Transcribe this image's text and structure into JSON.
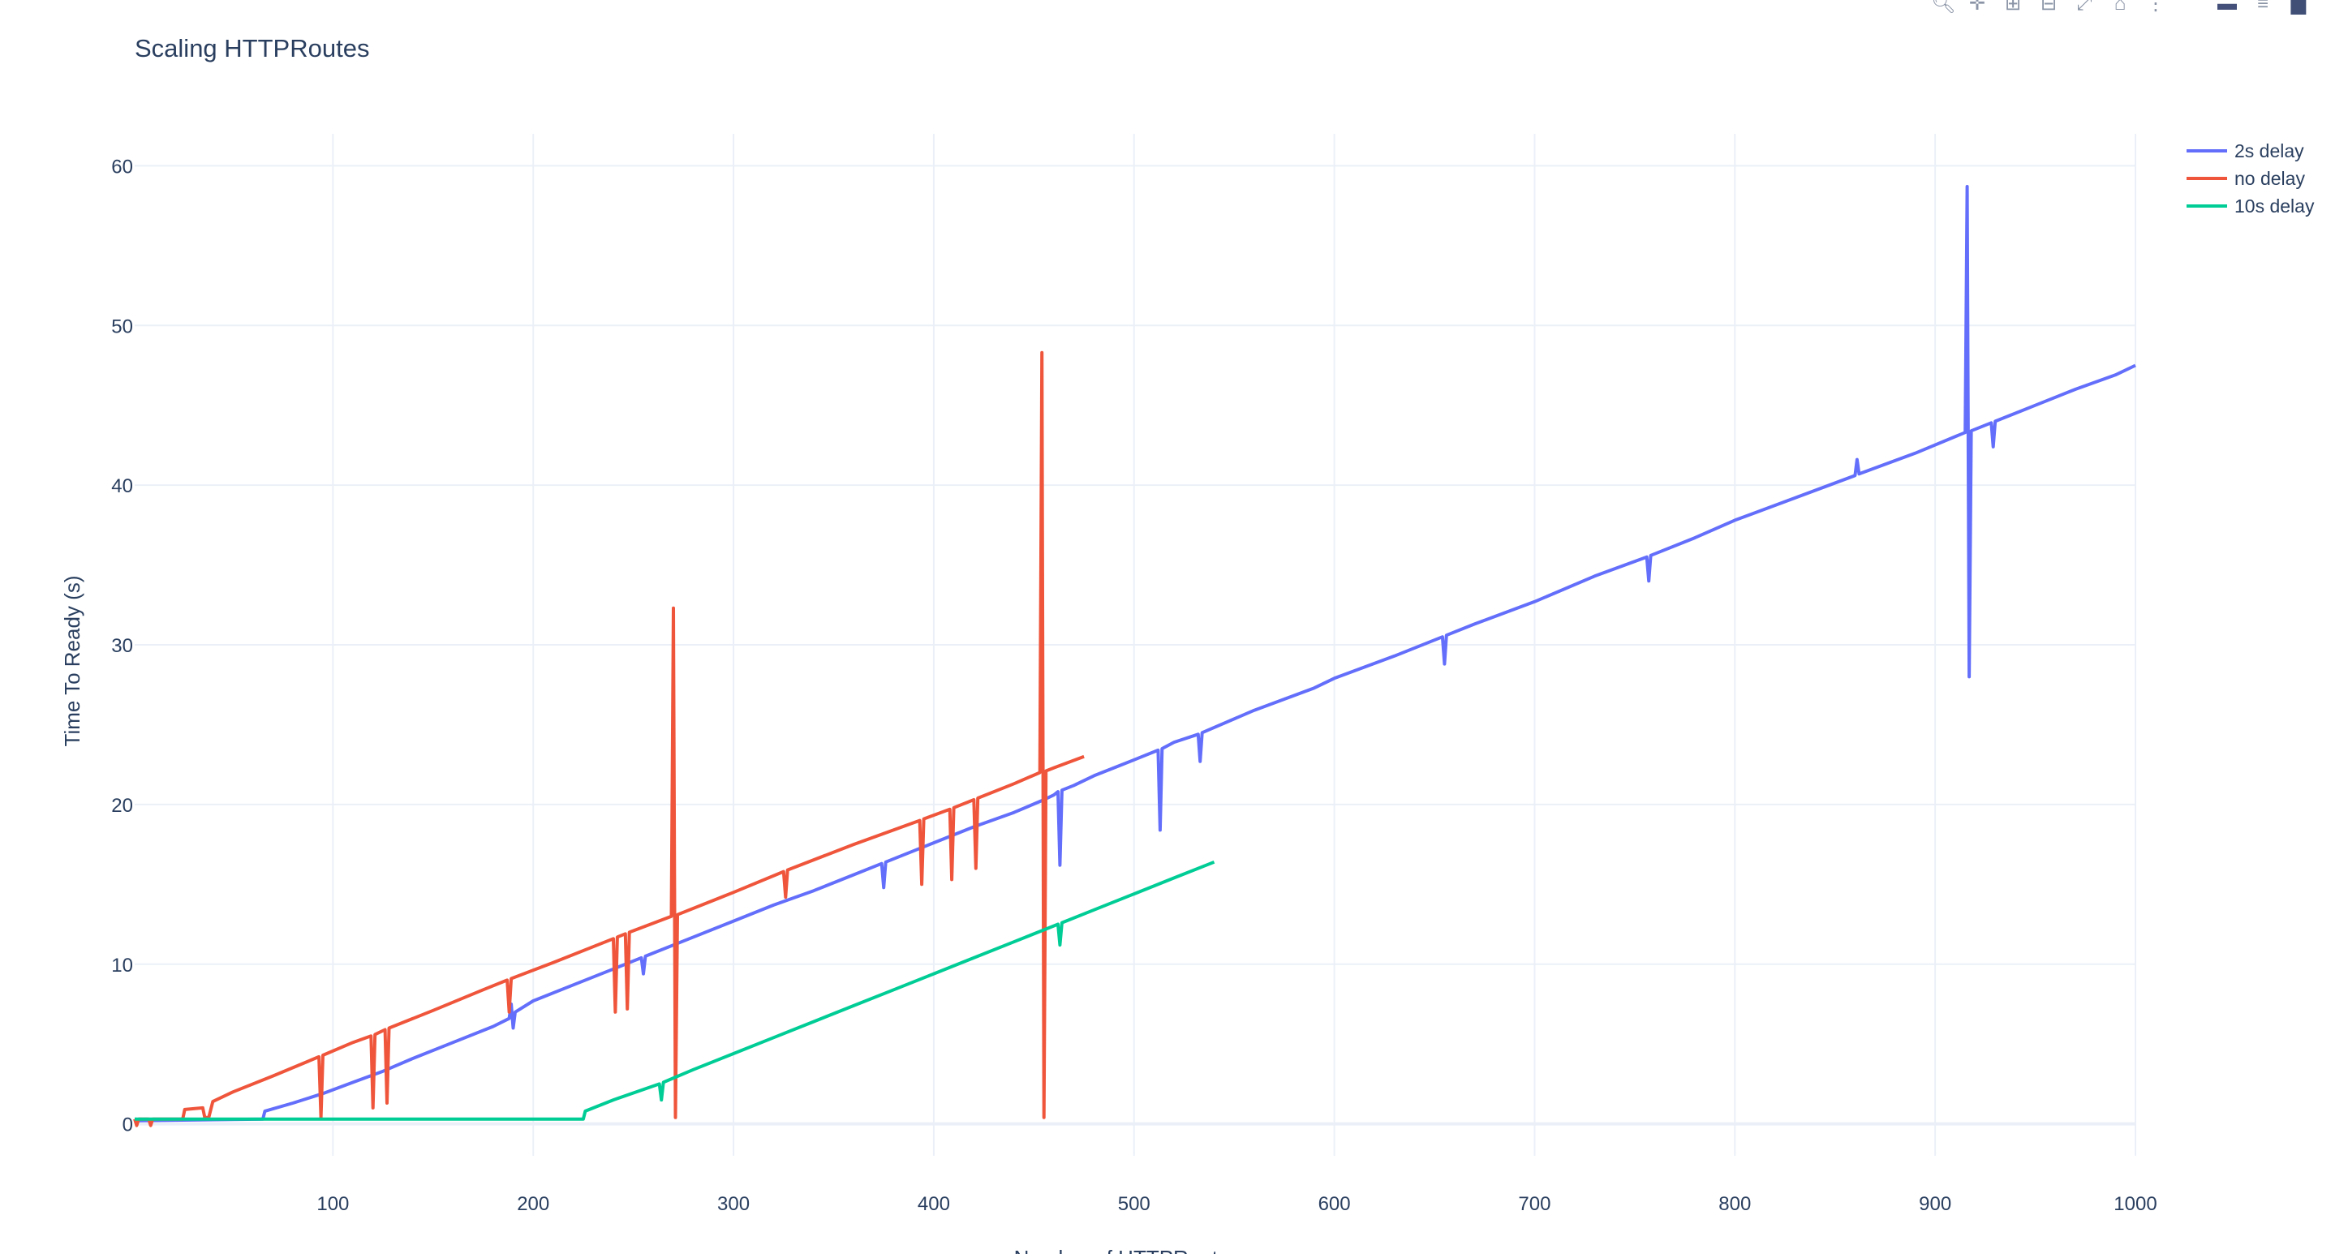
{
  "page": {
    "modebar_icons": [
      "zoom-icon",
      "pan-icon",
      "zoom-in-icon",
      "zoom-out-icon",
      "autoscale-icon",
      "reset-axes-icon",
      "toggle-spike-icon",
      "hover-closest-icon",
      "hover-compare-icon",
      "plotly-logo-icon"
    ]
  },
  "chart_data": {
    "type": "line",
    "title": "Scaling HTTPRoutes",
    "xlabel": "Number of HTTPRoutes",
    "ylabel": "Time To Ready (s)",
    "xlim": [
      1,
      1000
    ],
    "ylim": [
      -2,
      62
    ],
    "xticks": [
      100,
      200,
      300,
      400,
      500,
      600,
      700,
      800,
      900,
      1000
    ],
    "yticks": [
      0,
      10,
      20,
      30,
      40,
      50,
      60
    ],
    "grid": true,
    "legend_position": "top-right",
    "series": [
      {
        "name": "2s delay",
        "color": "#636efa",
        "points": [
          [
            1,
            0.2
          ],
          [
            65,
            0.3
          ],
          [
            66,
            0.8
          ],
          [
            80,
            1.3
          ],
          [
            95,
            1.9
          ],
          [
            110,
            2.6
          ],
          [
            125,
            3.3
          ],
          [
            140,
            4.1
          ],
          [
            160,
            5.1
          ],
          [
            180,
            6.1
          ],
          [
            188,
            6.6
          ],
          [
            189,
            7.5
          ],
          [
            190,
            6.0
          ],
          [
            191,
            7.0
          ],
          [
            200,
            7.7
          ],
          [
            220,
            8.7
          ],
          [
            240,
            9.7
          ],
          [
            250,
            10.2
          ],
          [
            254,
            10.4
          ],
          [
            255,
            9.4
          ],
          [
            256,
            10.5
          ],
          [
            280,
            11.7
          ],
          [
            300,
            12.7
          ],
          [
            320,
            13.7
          ],
          [
            340,
            14.6
          ],
          [
            360,
            15.6
          ],
          [
            374,
            16.3
          ],
          [
            375,
            14.8
          ],
          [
            376,
            16.4
          ],
          [
            400,
            17.6
          ],
          [
            420,
            18.6
          ],
          [
            440,
            19.5
          ],
          [
            455,
            20.3
          ],
          [
            460,
            20.6
          ],
          [
            462,
            20.8
          ],
          [
            463,
            16.2
          ],
          [
            464,
            20.9
          ],
          [
            470,
            21.2
          ],
          [
            480,
            21.8
          ],
          [
            490,
            22.3
          ],
          [
            500,
            22.8
          ],
          [
            512,
            23.4
          ],
          [
            513,
            18.4
          ],
          [
            514,
            23.5
          ],
          [
            520,
            23.9
          ],
          [
            532,
            24.4
          ],
          [
            533,
            22.7
          ],
          [
            534,
            24.5
          ],
          [
            560,
            25.9
          ],
          [
            590,
            27.3
          ],
          [
            600,
            27.9
          ],
          [
            630,
            29.3
          ],
          [
            654,
            30.5
          ],
          [
            655,
            28.8
          ],
          [
            656,
            30.6
          ],
          [
            670,
            31.3
          ],
          [
            700,
            32.7
          ],
          [
            730,
            34.3
          ],
          [
            756,
            35.5
          ],
          [
            757,
            34.0
          ],
          [
            758,
            35.6
          ],
          [
            780,
            36.7
          ],
          [
            800,
            37.8
          ],
          [
            830,
            39.2
          ],
          [
            860,
            40.6
          ],
          [
            861,
            41.6
          ],
          [
            862,
            40.7
          ],
          [
            890,
            42.0
          ],
          [
            915,
            43.3
          ],
          [
            916,
            58.7
          ],
          [
            917,
            28.0
          ],
          [
            918,
            43.4
          ],
          [
            928,
            43.9
          ],
          [
            929,
            42.4
          ],
          [
            930,
            44.0
          ],
          [
            950,
            45.0
          ],
          [
            970,
            46.0
          ],
          [
            990,
            46.9
          ],
          [
            1000,
            47.5
          ]
        ]
      },
      {
        "name": "no delay",
        "color": "#ef553b",
        "points": [
          [
            1,
            0.3
          ],
          [
            2,
            -0.1
          ],
          [
            3,
            0.3
          ],
          [
            8,
            0.3
          ],
          [
            9,
            -0.1
          ],
          [
            10,
            0.3
          ],
          [
            25,
            0.3
          ],
          [
            26,
            0.9
          ],
          [
            35,
            1.0
          ],
          [
            36,
            0.4
          ],
          [
            38,
            0.4
          ],
          [
            40,
            1.4
          ],
          [
            50,
            2.0
          ],
          [
            70,
            3.0
          ],
          [
            93,
            4.2
          ],
          [
            94,
            0.4
          ],
          [
            95,
            4.3
          ],
          [
            110,
            5.1
          ],
          [
            119,
            5.5
          ],
          [
            120,
            1.0
          ],
          [
            121,
            5.6
          ],
          [
            126,
            5.9
          ],
          [
            127,
            1.3
          ],
          [
            128,
            6.0
          ],
          [
            150,
            7.1
          ],
          [
            175,
            8.4
          ],
          [
            187,
            9.0
          ],
          [
            188,
            7.0
          ],
          [
            189,
            9.1
          ],
          [
            210,
            10.1
          ],
          [
            240,
            11.6
          ],
          [
            241,
            7.0
          ],
          [
            242,
            11.7
          ],
          [
            246,
            11.9
          ],
          [
            247,
            7.2
          ],
          [
            248,
            12.0
          ],
          [
            269,
            13.0
          ],
          [
            270,
            32.3
          ],
          [
            271,
            0.4
          ],
          [
            272,
            13.1
          ],
          [
            300,
            14.5
          ],
          [
            325,
            15.8
          ],
          [
            326,
            14.2
          ],
          [
            327,
            15.9
          ],
          [
            360,
            17.5
          ],
          [
            393,
            19.0
          ],
          [
            394,
            15.0
          ],
          [
            395,
            19.1
          ],
          [
            408,
            19.7
          ],
          [
            409,
            15.3
          ],
          [
            410,
            19.8
          ],
          [
            420,
            20.3
          ],
          [
            421,
            16.0
          ],
          [
            422,
            20.4
          ],
          [
            440,
            21.3
          ],
          [
            453,
            22.0
          ],
          [
            454,
            48.3
          ],
          [
            455,
            0.4
          ],
          [
            456,
            22.1
          ],
          [
            460,
            22.3
          ],
          [
            475,
            23.0
          ]
        ]
      },
      {
        "name": "10s delay",
        "color": "#00cc96",
        "points": [
          [
            1,
            0.3
          ],
          [
            225,
            0.3
          ],
          [
            226,
            0.8
          ],
          [
            240,
            1.5
          ],
          [
            263,
            2.5
          ],
          [
            264,
            1.5
          ],
          [
            265,
            2.6
          ],
          [
            280,
            3.4
          ],
          [
            300,
            4.4
          ],
          [
            320,
            5.4
          ],
          [
            340,
            6.4
          ],
          [
            360,
            7.4
          ],
          [
            380,
            8.4
          ],
          [
            400,
            9.4
          ],
          [
            420,
            10.4
          ],
          [
            440,
            11.4
          ],
          [
            460,
            12.4
          ],
          [
            462,
            12.5
          ],
          [
            463,
            11.2
          ],
          [
            464,
            12.6
          ],
          [
            480,
            13.4
          ],
          [
            500,
            14.4
          ],
          [
            520,
            15.4
          ],
          [
            540,
            16.4
          ]
        ]
      }
    ]
  }
}
